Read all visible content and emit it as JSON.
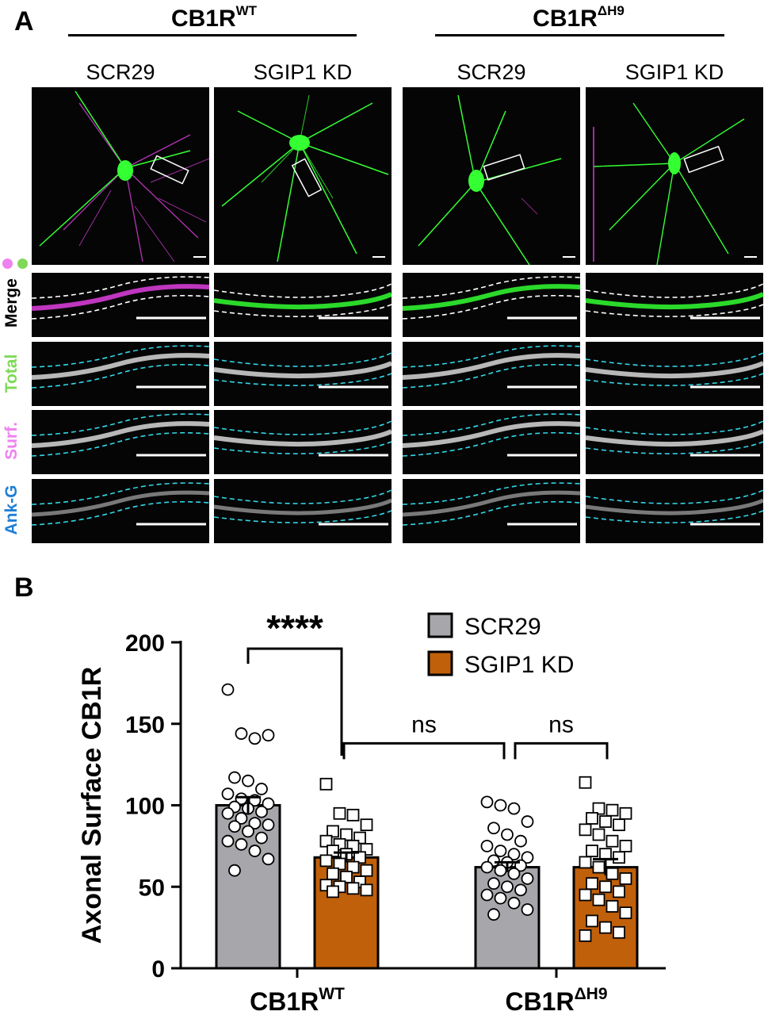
{
  "panel_a": {
    "letter": "A",
    "groups": [
      {
        "base": "CB1R",
        "sup": "WT"
      },
      {
        "base": "CB1R",
        "sup": "ΔH9"
      }
    ],
    "columns": [
      "SCR29",
      "SGIP1 KD",
      "SCR29",
      "SGIP1 KD"
    ],
    "rows": [
      {
        "label": "Merge",
        "color": "#000000"
      },
      {
        "label": "Total",
        "color": "#7ed957"
      },
      {
        "label": "Surf.",
        "color": "#ee82ee"
      },
      {
        "label": "Ank-G",
        "color": "#1f7fd6"
      }
    ],
    "colors": {
      "green": "#33ff33",
      "magenta": "#e040e0",
      "blue": "#2030c0",
      "outline": "#33d6e6",
      "dot_magenta": "#ee82ee",
      "dot_green": "#7ed957"
    }
  },
  "panel_b": {
    "letter": "B"
  },
  "chart_data": {
    "type": "bar",
    "ylabel": "Axonal Surface CB1R",
    "ylim": [
      0,
      200
    ],
    "yticks": [
      0,
      50,
      100,
      150,
      200
    ],
    "groups": [
      {
        "base": "CB1R",
        "sup": "WT"
      },
      {
        "base": "CB1R",
        "sup": "ΔH9"
      }
    ],
    "series": [
      {
        "name": "SCR29",
        "color": "#a6a6ab",
        "marker": "circle"
      },
      {
        "name": "SGIP1 KD",
        "color": "#c0600b",
        "marker": "square"
      }
    ],
    "bars": [
      {
        "group": 0,
        "series": 0,
        "mean": 100,
        "sem": 5,
        "points": [
          171,
          144,
          141,
          143,
          117,
          115,
          110,
          107,
          104,
          103,
          101,
          99,
          98,
          96,
          95,
          92,
          89,
          88,
          87,
          84,
          80,
          78,
          76,
          72,
          67,
          60
        ]
      },
      {
        "group": 0,
        "series": 1,
        "mean": 68,
        "sem": 3,
        "points": [
          113,
          95,
          94,
          88,
          84,
          82,
          80,
          78,
          76,
          75,
          73,
          72,
          70,
          68,
          66,
          64,
          62,
          60,
          58,
          56,
          53,
          51,
          50,
          49,
          48,
          47
        ]
      },
      {
        "group": 1,
        "series": 0,
        "mean": 62,
        "sem": 3,
        "points": [
          102,
          100,
          98,
          90,
          86,
          82,
          78,
          75,
          72,
          70,
          68,
          66,
          65,
          63,
          62,
          60,
          58,
          55,
          52,
          50,
          48,
          45,
          43,
          40,
          36,
          33
        ]
      },
      {
        "group": 1,
        "series": 1,
        "mean": 62,
        "sem": 5,
        "points": [
          114,
          98,
          97,
          95,
          92,
          90,
          88,
          85,
          82,
          78,
          75,
          72,
          70,
          68,
          65,
          62,
          58,
          55,
          52,
          50,
          47,
          45,
          42,
          38,
          34,
          29,
          25,
          22,
          20
        ]
      }
    ],
    "comparisons": [
      {
        "from_bar": 0,
        "to_bar": 1,
        "label": "****",
        "level": 200
      },
      {
        "from_bar": 1,
        "to_bar": 2,
        "label": "ns",
        "level": 138
      },
      {
        "from_bar": 2,
        "to_bar": 3,
        "label": "ns",
        "level": 138
      }
    ]
  }
}
